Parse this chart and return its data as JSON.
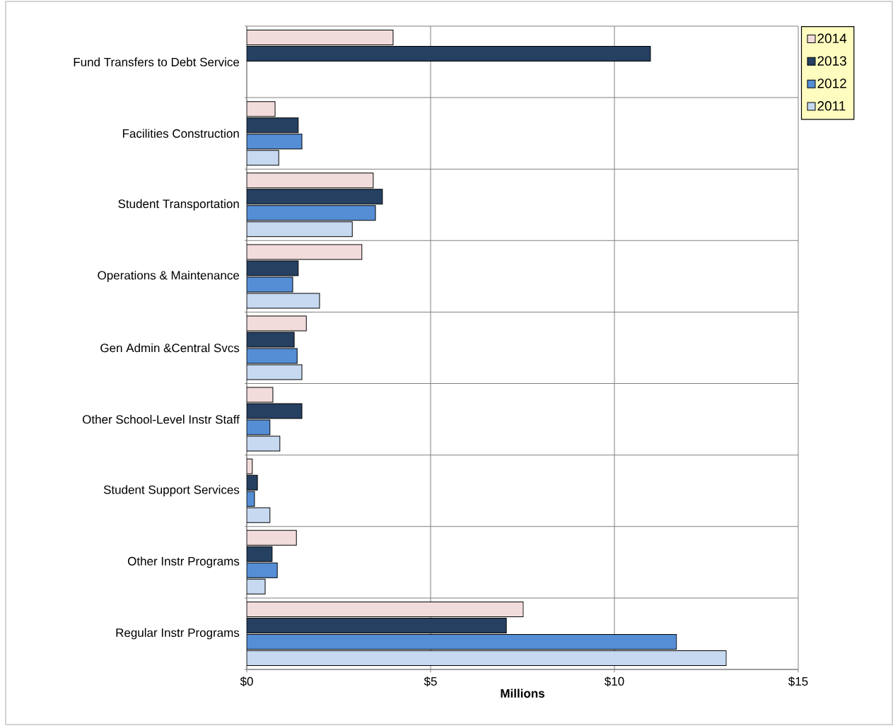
{
  "chart_data": {
    "type": "bar",
    "orientation": "horizontal",
    "xlabel": "Millions",
    "categories": [
      "Fund Transfers to Debt Service",
      "Facilities Construction",
      "Student Transportation",
      "Operations & Maintenance",
      "Gen Admin &Central Svcs",
      "Other School-Level Instr Staff",
      "Student Support Services",
      "Other Instr Programs",
      "Regular Instr Programs"
    ],
    "series": [
      {
        "name": "2014",
        "color": "#f2dcdb",
        "values": [
          3.98,
          0.77,
          3.44,
          3.13,
          1.62,
          0.71,
          0.15,
          1.35,
          7.52
        ]
      },
      {
        "name": "2013",
        "color": "#254061",
        "values": [
          10.98,
          1.4,
          3.69,
          1.4,
          1.29,
          1.5,
          0.29,
          0.69,
          7.06
        ]
      },
      {
        "name": "2012",
        "color": "#558ed5",
        "values": [
          null,
          1.5,
          3.5,
          1.25,
          1.37,
          0.63,
          0.21,
          0.83,
          11.69
        ]
      },
      {
        "name": "2011",
        "color": "#c6d9f1",
        "values": [
          null,
          0.87,
          2.87,
          1.98,
          1.5,
          0.9,
          0.63,
          0.5,
          13.04
        ]
      }
    ],
    "xlim": [
      0,
      15
    ],
    "xticks": [
      {
        "value": 0,
        "label": "$0"
      },
      {
        "value": 5,
        "label": "$5"
      },
      {
        "value": 10,
        "label": "$10"
      },
      {
        "value": 15,
        "label": "$15"
      }
    ],
    "grid": true,
    "legend": "top right"
  }
}
